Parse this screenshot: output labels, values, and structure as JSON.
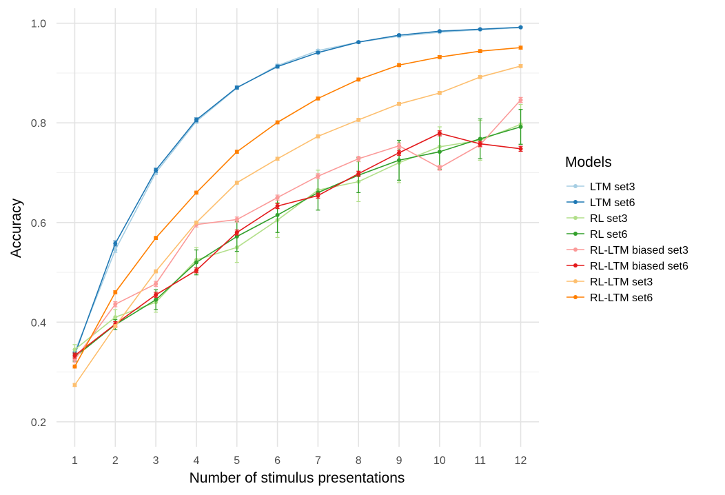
{
  "chart_data": {
    "type": "line",
    "title": "",
    "xlabel": "Number of stimulus presentations",
    "ylabel": "Accuracy",
    "x": [
      1,
      2,
      3,
      4,
      5,
      6,
      7,
      8,
      9,
      10,
      11,
      12
    ],
    "x_tick_labels": [
      "1",
      "2",
      "3",
      "4",
      "5",
      "6",
      "7",
      "8",
      "9",
      "10",
      "11",
      "12"
    ],
    "y_ticks": [
      0.2,
      0.4,
      0.6,
      0.8,
      1.0
    ],
    "y_tick_labels": [
      "0.2",
      "0.4",
      "0.6",
      "0.8",
      "1.0"
    ],
    "xlim": [
      0.55,
      12.45
    ],
    "ylim": [
      0.15,
      1.03
    ],
    "grid": true,
    "legend": {
      "title": "Models",
      "position": "right"
    },
    "series": [
      {
        "name": "LTM set3",
        "color": "#a6cee3",
        "values": [
          0.34,
          0.545,
          0.7,
          0.803,
          0.87,
          0.915,
          0.945,
          0.962,
          0.974,
          0.982,
          0.987,
          0.991
        ],
        "errors": [
          0.005,
          0.005,
          0.004,
          0.004,
          0.003,
          0.003,
          0.002,
          0.002,
          0.002,
          0.001,
          0.001,
          0.001
        ]
      },
      {
        "name": "LTM set6",
        "color": "#1f78b4",
        "values": [
          0.335,
          0.558,
          0.705,
          0.806,
          0.871,
          0.913,
          0.941,
          0.962,
          0.976,
          0.984,
          0.988,
          0.992
        ],
        "errors": [
          0.005,
          0.005,
          0.004,
          0.004,
          0.003,
          0.003,
          0.002,
          0.002,
          0.002,
          0.001,
          0.001,
          0.001
        ]
      },
      {
        "name": "RL set3",
        "color": "#b2df8a",
        "values": [
          0.345,
          0.41,
          0.44,
          0.525,
          0.55,
          0.605,
          0.665,
          0.682,
          0.72,
          0.752,
          0.765,
          0.797
        ],
        "errors": [
          0.01,
          0.015,
          0.02,
          0.025,
          0.03,
          0.035,
          0.04,
          0.04,
          0.04,
          0.04,
          0.04,
          0.04
        ]
      },
      {
        "name": "RL set6",
        "color": "#33a02c",
        "values": [
          0.33,
          0.395,
          0.445,
          0.52,
          0.572,
          0.615,
          0.66,
          0.695,
          0.725,
          0.742,
          0.768,
          0.792
        ],
        "errors": [
          0.008,
          0.01,
          0.02,
          0.025,
          0.03,
          0.035,
          0.035,
          0.035,
          0.04,
          0.035,
          0.04,
          0.035
        ]
      },
      {
        "name": "RL-LTM biased set3",
        "color": "#fb9a99",
        "values": [
          0.325,
          0.436,
          0.477,
          0.596,
          0.606,
          0.65,
          0.693,
          0.728,
          0.754,
          0.71,
          0.756,
          0.846
        ],
        "errors": [
          0.005,
          0.005,
          0.005,
          0.005,
          0.005,
          0.005,
          0.005,
          0.005,
          0.005,
          0.005,
          0.005,
          0.005
        ]
      },
      {
        "name": "RL-LTM biased set6",
        "color": "#e31a1c",
        "values": [
          0.333,
          0.396,
          0.455,
          0.504,
          0.58,
          0.633,
          0.654,
          0.698,
          0.74,
          0.779,
          0.758,
          0.748
        ],
        "errors": [
          0.005,
          0.005,
          0.005,
          0.005,
          0.005,
          0.005,
          0.005,
          0.005,
          0.005,
          0.005,
          0.005,
          0.005
        ]
      },
      {
        "name": "RL-LTM set3",
        "color": "#fdbf6f",
        "values": [
          0.274,
          0.392,
          0.502,
          0.6,
          0.68,
          0.728,
          0.773,
          0.806,
          0.838,
          0.86,
          0.892,
          0.914
        ],
        "errors": [
          0.003,
          0.003,
          0.003,
          0.003,
          0.003,
          0.003,
          0.003,
          0.003,
          0.003,
          0.003,
          0.003,
          0.003
        ]
      },
      {
        "name": "RL-LTM set6",
        "color": "#ff7f00",
        "values": [
          0.311,
          0.46,
          0.569,
          0.66,
          0.742,
          0.801,
          0.849,
          0.887,
          0.916,
          0.932,
          0.944,
          0.951
        ],
        "errors": [
          0.003,
          0.003,
          0.003,
          0.003,
          0.003,
          0.003,
          0.003,
          0.003,
          0.003,
          0.003,
          0.003,
          0.003
        ]
      }
    ]
  }
}
